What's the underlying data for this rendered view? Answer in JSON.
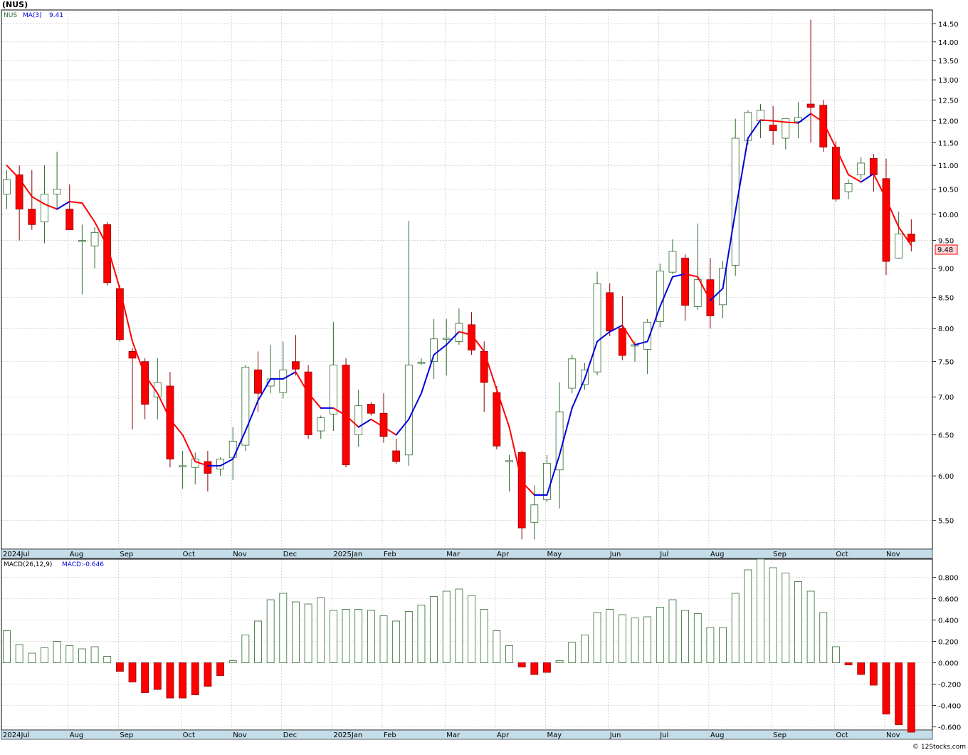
{
  "header": {
    "symbol_title": "(NUS)"
  },
  "price_panel": {
    "legend_symbol": "NUS",
    "legend_ma": "MA(3)",
    "legend_ma_value": "9.41",
    "last_price_label": "9.48",
    "y_ticks": [
      "14.50",
      "14.00",
      "13.50",
      "13.00",
      "12.50",
      "12.00",
      "11.50",
      "11.00",
      "10.50",
      "10.00",
      "9.50",
      "9.00",
      "8.50",
      "8.00",
      "7.50",
      "7.00",
      "6.50",
      "6.00",
      "5.50"
    ],
    "scale": "log"
  },
  "macd_panel": {
    "legend_label": "MACD(26,12,9)",
    "legend_value": "MACD:-0.646",
    "y_ticks": [
      "0.800",
      "0.600",
      "0.400",
      "0.200",
      "0.000",
      "-0.200",
      "-0.400",
      "-0.600"
    ]
  },
  "x_axis_labels": [
    "2024Jul",
    "Aug",
    "Sep",
    "Oct",
    "Nov",
    "Dec",
    "2025Jan",
    "Feb",
    "Mar",
    "Apr",
    "May",
    "Jun",
    "Jul",
    "Aug",
    "Sep",
    "Oct",
    "Nov"
  ],
  "footer": {
    "credit": "© 12Stocks.com"
  },
  "colors": {
    "up_candle": "#2e6b2e",
    "down_candle": "#ff0000",
    "ma_up": "#0000dd",
    "ma_down": "#ff0000",
    "macd_positive": "#2e6b2e",
    "macd_negative": "#ff0000",
    "axis_band": "#c5dde8",
    "grid": "#bbbbbb"
  },
  "chart_data": [
    {
      "type": "candlestick",
      "title": "(NUS)",
      "period": "weekly",
      "y_scale": "log",
      "ylim": [
        5.2,
        14.9
      ],
      "grid": true,
      "x_labels": [
        "2024Jul",
        "Aug",
        "Sep",
        "Oct",
        "Nov",
        "Dec",
        "2025Jan",
        "Feb",
        "Mar",
        "Apr",
        "May",
        "Jun",
        "Jul",
        "Aug",
        "Sep",
        "Oct",
        "Nov"
      ],
      "x_label_positions": [
        0,
        5,
        9,
        14,
        18,
        22,
        26,
        30,
        35,
        39,
        43,
        48,
        52,
        56,
        61,
        66,
        70
      ],
      "ohlc": [
        [
          10.4,
          10.9,
          10.1,
          10.7
        ],
        [
          10.8,
          11.0,
          9.5,
          10.1
        ],
        [
          10.1,
          10.9,
          9.7,
          9.8
        ],
        [
          9.85,
          11.0,
          9.45,
          10.4
        ],
        [
          10.4,
          11.3,
          10.1,
          10.5
        ],
        [
          10.1,
          10.6,
          9.7,
          9.7
        ],
        [
          9.5,
          9.8,
          8.55,
          9.5
        ],
        [
          9.4,
          9.75,
          9.0,
          9.65
        ],
        [
          9.8,
          9.85,
          8.7,
          8.75
        ],
        [
          8.65,
          8.7,
          7.8,
          7.83
        ],
        [
          7.65,
          7.7,
          6.57,
          7.55
        ],
        [
          7.5,
          7.55,
          6.7,
          6.9
        ],
        [
          7.0,
          7.55,
          6.7,
          7.2
        ],
        [
          7.15,
          7.35,
          6.1,
          6.2
        ],
        [
          6.12,
          6.3,
          5.85,
          6.12
        ],
        [
          6.1,
          6.28,
          5.9,
          6.2
        ],
        [
          6.17,
          6.3,
          5.82,
          6.03
        ],
        [
          6.08,
          6.22,
          6.0,
          6.2
        ],
        [
          6.22,
          6.6,
          5.95,
          6.42
        ],
        [
          6.37,
          7.45,
          6.3,
          7.42
        ],
        [
          7.38,
          7.65,
          6.8,
          7.05
        ],
        [
          7.15,
          7.75,
          7.05,
          7.25
        ],
        [
          7.06,
          7.8,
          6.98,
          7.38
        ],
        [
          7.5,
          7.9,
          7.3,
          7.39
        ],
        [
          7.35,
          7.45,
          6.45,
          6.5
        ],
        [
          6.55,
          6.75,
          6.45,
          6.72
        ],
        [
          6.77,
          8.1,
          6.55,
          7.45
        ],
        [
          7.45,
          7.55,
          6.1,
          6.13
        ],
        [
          6.5,
          7.1,
          6.35,
          6.88
        ],
        [
          6.9,
          6.93,
          6.75,
          6.78
        ],
        [
          6.78,
          7.05,
          6.4,
          6.48
        ],
        [
          6.3,
          6.45,
          6.14,
          6.17
        ],
        [
          6.25,
          9.87,
          6.12,
          7.45
        ],
        [
          7.48,
          7.55,
          7.45,
          7.49
        ],
        [
          7.5,
          8.15,
          7.25,
          7.84
        ],
        [
          7.85,
          8.15,
          7.3,
          7.85
        ],
        [
          7.8,
          8.32,
          7.75,
          8.08
        ],
        [
          8.06,
          8.26,
          7.6,
          7.67
        ],
        [
          7.65,
          7.8,
          6.8,
          7.2
        ],
        [
          7.06,
          7.15,
          6.32,
          6.36
        ],
        [
          6.18,
          6.25,
          5.82,
          6.18
        ],
        [
          6.28,
          6.3,
          5.3,
          5.42
        ],
        [
          5.48,
          5.89,
          5.3,
          5.67
        ],
        [
          5.73,
          6.25,
          5.7,
          6.15
        ],
        [
          6.07,
          7.2,
          5.63,
          6.8
        ],
        [
          7.12,
          7.6,
          7.05,
          7.54
        ],
        [
          7.17,
          7.48,
          7.1,
          7.38
        ],
        [
          7.35,
          8.94,
          7.3,
          8.73
        ],
        [
          8.58,
          8.74,
          7.88,
          7.96
        ],
        [
          8.0,
          8.52,
          7.52,
          7.59
        ],
        [
          7.73,
          7.8,
          7.5,
          7.75
        ],
        [
          7.68,
          8.15,
          7.32,
          8.1
        ],
        [
          8.11,
          9.08,
          8.02,
          8.95
        ],
        [
          8.93,
          9.52,
          8.9,
          9.3
        ],
        [
          9.18,
          9.25,
          8.12,
          8.37
        ],
        [
          8.35,
          9.82,
          8.3,
          8.8
        ],
        [
          8.8,
          9.18,
          8.0,
          8.2
        ],
        [
          8.38,
          9.13,
          8.16,
          9.0
        ],
        [
          9.05,
          12.05,
          8.87,
          11.6
        ],
        [
          11.55,
          12.25,
          11.45,
          12.2
        ],
        [
          12.0,
          12.4,
          11.6,
          12.25
        ],
        [
          11.9,
          12.35,
          11.45,
          11.77
        ],
        [
          11.6,
          12.05,
          11.35,
          12.05
        ],
        [
          11.98,
          12.45,
          11.6,
          12.08
        ],
        [
          12.4,
          14.62,
          11.5,
          12.32
        ],
        [
          12.37,
          12.5,
          11.3,
          11.4
        ],
        [
          11.4,
          11.53,
          10.25,
          10.3
        ],
        [
          10.45,
          10.7,
          10.3,
          10.62
        ],
        [
          10.8,
          11.18,
          10.7,
          11.05
        ],
        [
          11.15,
          11.25,
          10.45,
          10.8
        ],
        [
          10.72,
          11.15,
          8.88,
          9.12
        ],
        [
          9.18,
          10.05,
          9.17,
          9.62
        ],
        [
          9.62,
          9.9,
          9.3,
          9.48
        ]
      ],
      "ma": {
        "name": "MA(3)",
        "values": [
          11.0,
          10.72,
          10.35,
          10.2,
          10.1,
          10.25,
          10.22,
          9.85,
          9.4,
          8.65,
          7.8,
          7.3,
          7.05,
          6.7,
          6.5,
          6.17,
          6.12,
          6.12,
          6.2,
          6.55,
          6.95,
          7.25,
          7.25,
          7.35,
          7.05,
          6.85,
          6.85,
          6.75,
          6.6,
          6.7,
          6.6,
          6.5,
          6.7,
          7.05,
          7.6,
          7.75,
          7.95,
          7.9,
          7.65,
          7.1,
          6.6,
          5.93,
          5.78,
          5.78,
          6.25,
          6.85,
          7.25,
          7.8,
          7.95,
          8.05,
          7.75,
          7.8,
          8.35,
          8.85,
          8.9,
          8.85,
          8.45,
          8.65,
          10.05,
          11.6,
          12.02,
          12.0,
          11.97,
          11.95,
          12.17,
          11.97,
          11.38,
          10.8,
          10.65,
          10.82,
          10.3,
          9.75,
          9.41
        ]
      },
      "series": [
        {
          "name": "MACD(26,12,9)",
          "type": "bar",
          "values": [
            0.3,
            0.17,
            0.09,
            0.14,
            0.2,
            0.16,
            0.13,
            0.15,
            0.06,
            -0.08,
            -0.18,
            -0.28,
            -0.25,
            -0.33,
            -0.33,
            -0.3,
            -0.22,
            -0.12,
            0.02,
            0.26,
            0.39,
            0.59,
            0.65,
            0.57,
            0.55,
            0.61,
            0.49,
            0.5,
            0.5,
            0.49,
            0.44,
            0.39,
            0.48,
            0.54,
            0.62,
            0.67,
            0.69,
            0.63,
            0.5,
            0.3,
            0.16,
            -0.04,
            -0.11,
            -0.09,
            0.02,
            0.19,
            0.26,
            0.47,
            0.5,
            0.45,
            0.42,
            0.43,
            0.52,
            0.59,
            0.49,
            0.46,
            0.33,
            0.33,
            0.65,
            0.87,
            0.97,
            0.89,
            0.84,
            0.76,
            0.67,
            0.47,
            0.15,
            -0.02,
            -0.11,
            -0.21,
            -0.48,
            -0.58,
            -0.65
          ]
        }
      ],
      "macd_ylim": [
        -0.63,
        0.97
      ]
    }
  ]
}
